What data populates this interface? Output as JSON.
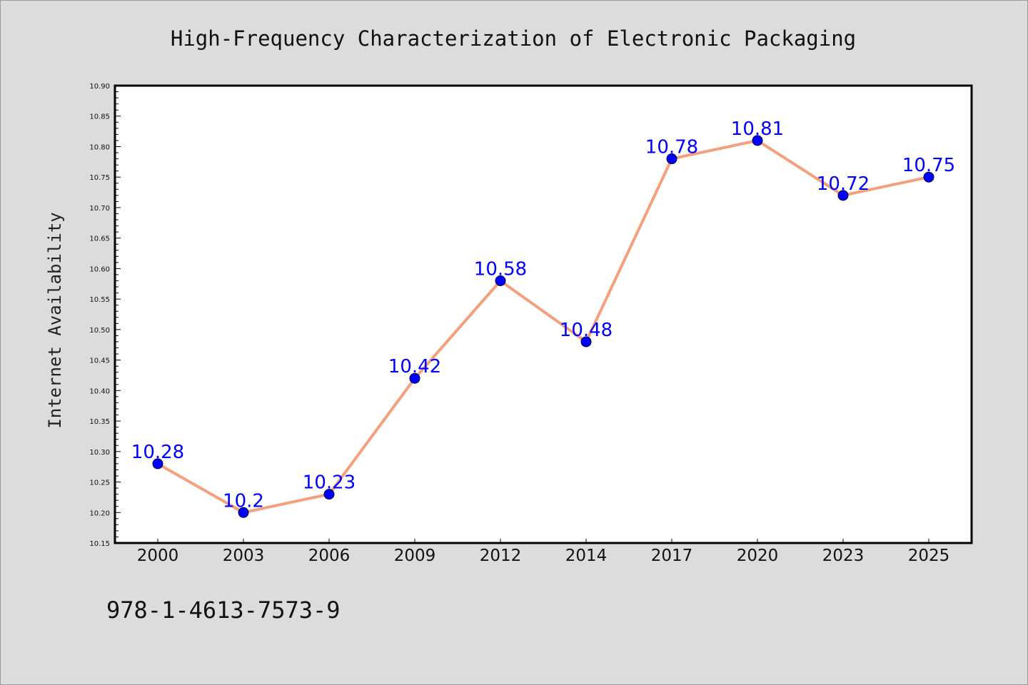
{
  "chart_data": {
    "type": "line",
    "title": "High-Frequency Characterization of Electronic Packaging",
    "xlabel": "",
    "ylabel": "Internet Availability",
    "categories": [
      "2000",
      "2003",
      "2006",
      "2009",
      "2012",
      "2014",
      "2017",
      "2020",
      "2023",
      "2025"
    ],
    "series": [
      {
        "values": [
          10.28,
          10.2,
          10.23,
          10.42,
          10.58,
          10.48,
          10.78,
          10.81,
          10.72,
          10.75
        ],
        "data_labels": [
          "10.28",
          "10.2",
          "10.23",
          "10.42",
          "10.58",
          "10.48",
          "10.78",
          "10.81",
          "10.72",
          "10.75"
        ],
        "line_color": "#f4a07c",
        "marker_color": "#0000ff"
      }
    ],
    "ylim": [
      10.15,
      10.9
    ],
    "yticks": [
      "10.15",
      "10.20",
      "10.25",
      "10.30",
      "10.35",
      "10.40",
      "10.45",
      "10.50",
      "10.55",
      "10.60",
      "10.65",
      "10.70",
      "10.75",
      "10.80",
      "10.85",
      "10.90"
    ],
    "grid": false,
    "legend": "none"
  },
  "footer": {
    "isbn": "978-1-4613-7573-9"
  },
  "colors": {
    "background": "#dcdcdc",
    "plot_background": "#ffffff",
    "line": "#f4a07c",
    "marker": "#0000ff",
    "data_label": "#0000ff"
  }
}
